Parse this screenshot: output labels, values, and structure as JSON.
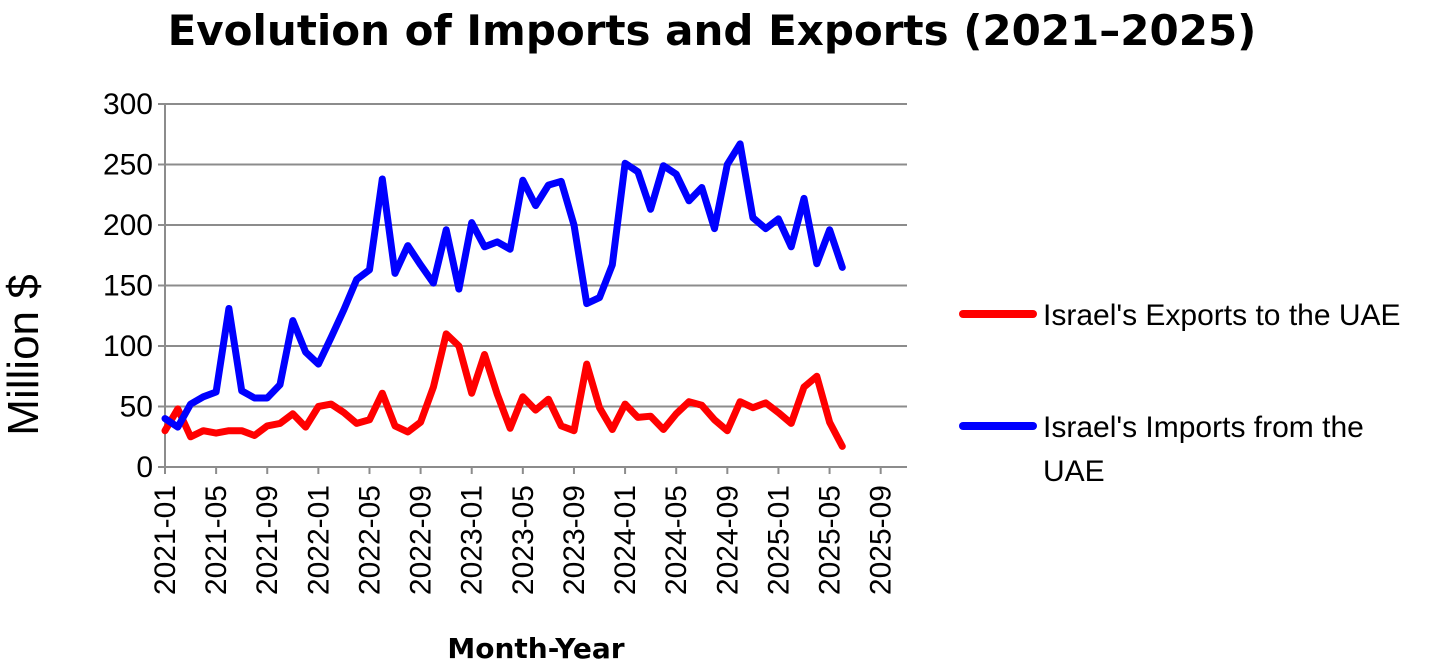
{
  "chart_data": {
    "type": "line",
    "title": "Evolution of Imports and Exports (2021–2025)",
    "xlabel": "Month-Year",
    "ylabel": "Million $",
    "ylim": [
      0,
      300
    ],
    "yticks": [
      0,
      50,
      100,
      150,
      200,
      250,
      300
    ],
    "x_tick_labels": [
      "2021-01",
      "2021-05",
      "2021-09",
      "2022-01",
      "2022-05",
      "2022-09",
      "2023-01",
      "2023-05",
      "2023-09",
      "2024-01",
      "2024-05",
      "2024-09",
      "2025-01",
      "2025-05",
      "2025-09"
    ],
    "x_range": [
      "2021-01",
      "2025-12"
    ],
    "grid": "horizontal",
    "legend_position": "right",
    "x": [
      "2021-01",
      "2021-02",
      "2021-03",
      "2021-04",
      "2021-05",
      "2021-06",
      "2021-07",
      "2021-08",
      "2021-09",
      "2021-10",
      "2021-11",
      "2021-12",
      "2022-01",
      "2022-02",
      "2022-03",
      "2022-04",
      "2022-05",
      "2022-06",
      "2022-07",
      "2022-08",
      "2022-09",
      "2022-10",
      "2022-11",
      "2022-12",
      "2023-01",
      "2023-02",
      "2023-03",
      "2023-04",
      "2023-05",
      "2023-06",
      "2023-07",
      "2023-08",
      "2023-09",
      "2023-10",
      "2023-11",
      "2023-12",
      "2024-01",
      "2024-02",
      "2024-03",
      "2024-04",
      "2024-05",
      "2024-06",
      "2024-07",
      "2024-08",
      "2024-09",
      "2024-10",
      "2024-11",
      "2024-12",
      "2025-01",
      "2025-02",
      "2025-03",
      "2025-04",
      "2025-05",
      "2025-06"
    ],
    "series": [
      {
        "name": "Israel's Exports to the UAE",
        "color": "#ff0000",
        "values": [
          30,
          48,
          25,
          30,
          28,
          30,
          30,
          26,
          34,
          36,
          44,
          33,
          50,
          52,
          45,
          36,
          39,
          61,
          34,
          29,
          37,
          66,
          110,
          100,
          61,
          93,
          60,
          32,
          58,
          47,
          56,
          34,
          30,
          85,
          49,
          31,
          52,
          41,
          42,
          31,
          44,
          54,
          51,
          39,
          30,
          54,
          49,
          53,
          45,
          36,
          66,
          75,
          37,
          17
        ]
      },
      {
        "name": "Israel's Imports from the UAE",
        "color": "#0000ff",
        "values": [
          40,
          33,
          52,
          58,
          62,
          131,
          63,
          57,
          57,
          68,
          121,
          95,
          85,
          107,
          130,
          155,
          163,
          238,
          160,
          183,
          167,
          152,
          196,
          147,
          202,
          182,
          186,
          180,
          237,
          216,
          233,
          236,
          200,
          135,
          140,
          167,
          251,
          244,
          213,
          249,
          242,
          220,
          231,
          197,
          250,
          267,
          206,
          197,
          205,
          182,
          222,
          168,
          196,
          165
        ]
      }
    ]
  }
}
